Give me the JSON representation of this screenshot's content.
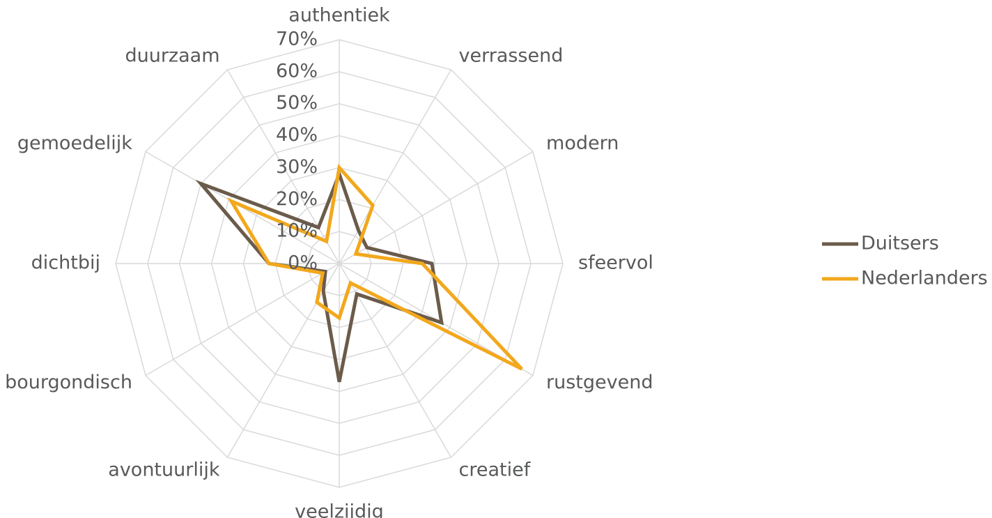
{
  "chart_data": {
    "type": "radar",
    "categories": [
      "authentiek",
      "verrassend",
      "modern",
      "sfeervol",
      "rustgevend",
      "creatief",
      "veelzijdig",
      "avontuurlijk",
      "bourgondisch",
      "dichtbij",
      "gemoedelijk",
      "duurzaam"
    ],
    "series": [
      {
        "name": "Duitsers",
        "color": "#6b5b4a",
        "values": [
          28,
          12,
          10,
          29,
          37,
          11,
          37,
          10,
          5,
          22,
          50,
          13
        ]
      },
      {
        "name": "Nederlanders",
        "color": "#f2a81d",
        "values": [
          30,
          21,
          6,
          26,
          66,
          7,
          17,
          14,
          6,
          22,
          39,
          8
        ]
      }
    ],
    "ylim": [
      0,
      70
    ],
    "yticks": [
      {
        "value": 0,
        "label": "0%"
      },
      {
        "value": 10,
        "label": "10%"
      },
      {
        "value": 20,
        "label": "20%"
      },
      {
        "value": 30,
        "label": "30%"
      },
      {
        "value": 40,
        "label": "40%"
      },
      {
        "value": 50,
        "label": "50%"
      },
      {
        "value": 60,
        "label": "60%"
      },
      {
        "value": 70,
        "label": "70%"
      }
    ],
    "grid": true,
    "legend": "right"
  }
}
